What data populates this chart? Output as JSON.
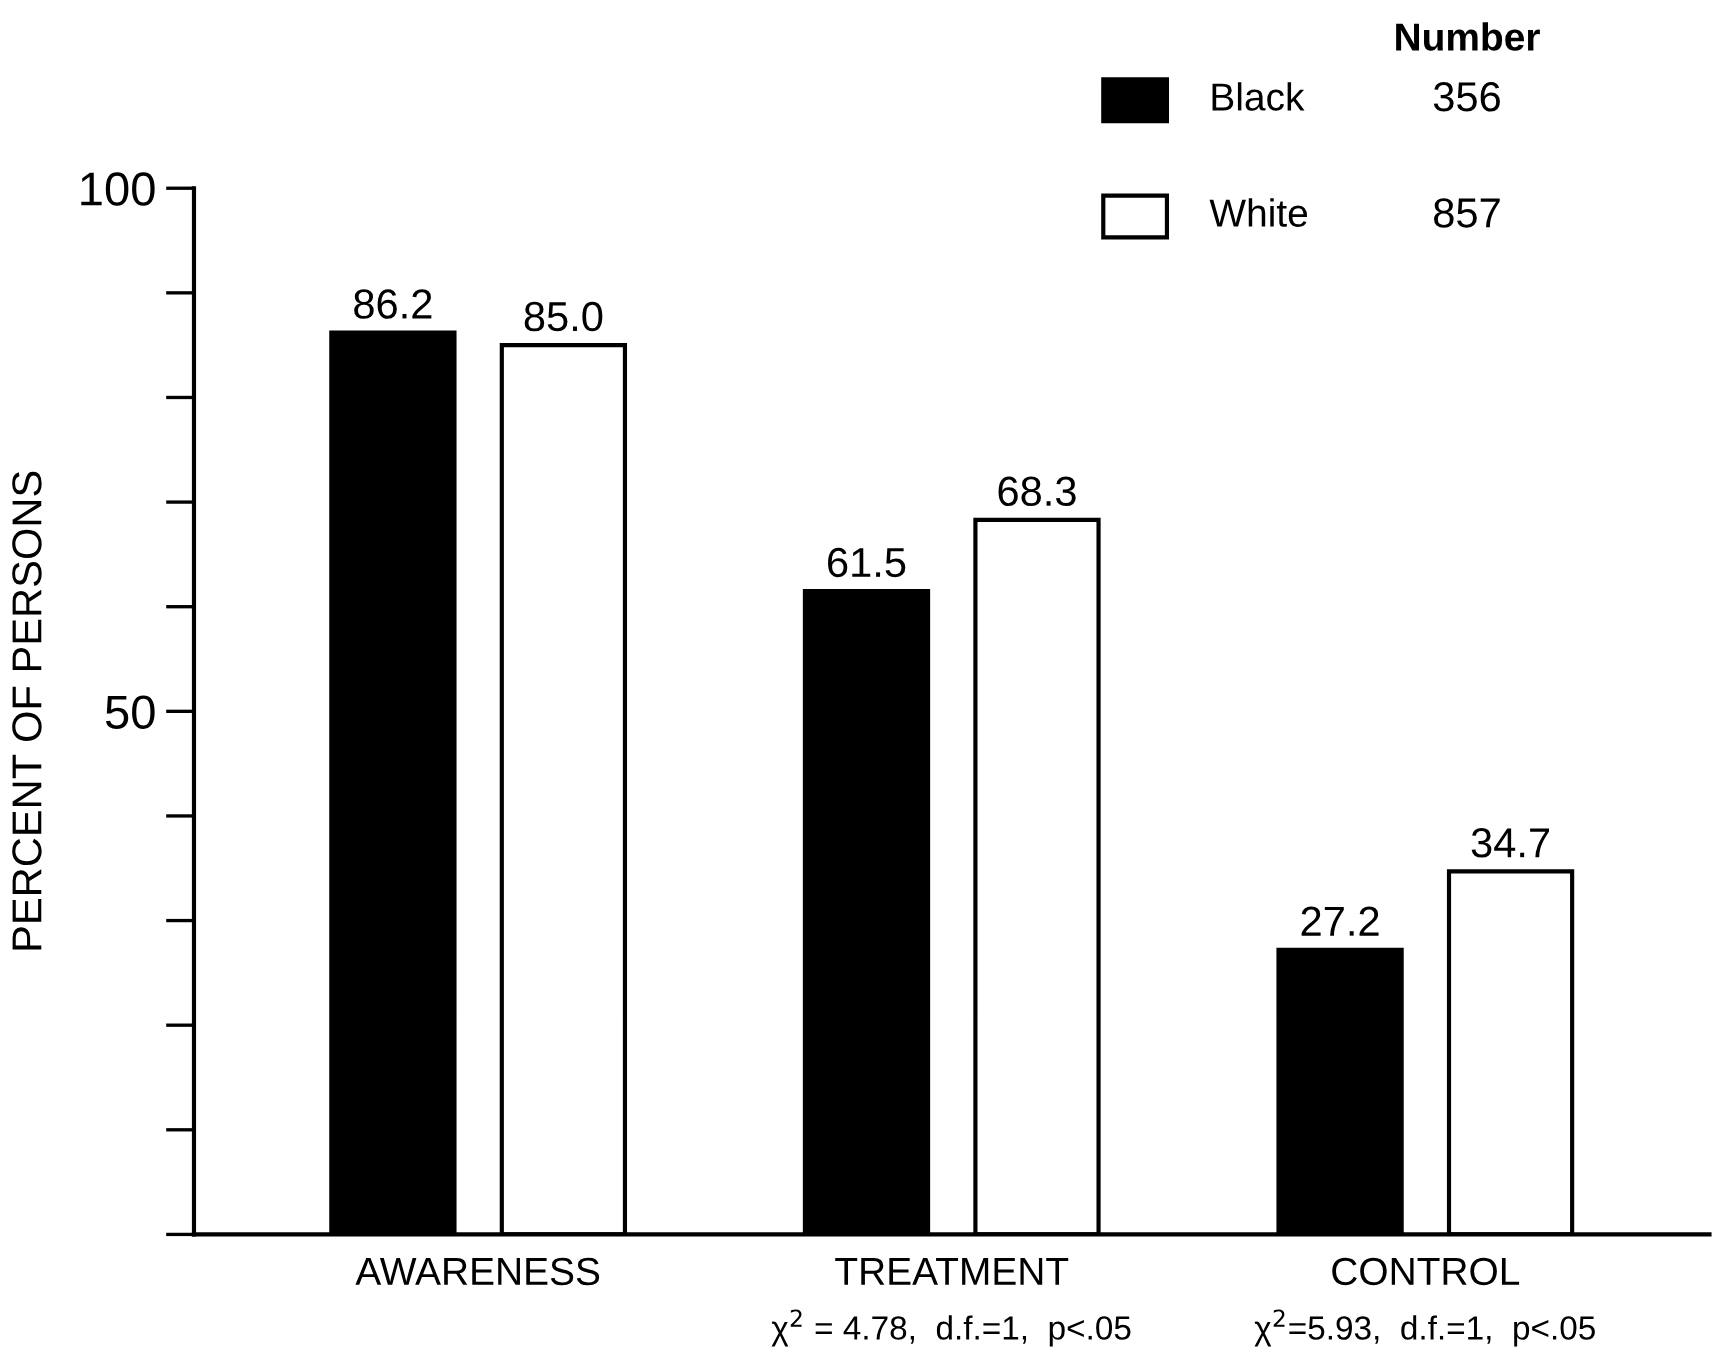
{
  "chart_data": {
    "type": "bar",
    "ylabel": "PERCENT OF PERSONS",
    "categories": [
      "AWARENESS",
      "TREATMENT",
      "CONTROL"
    ],
    "series": [
      {
        "name": "Black",
        "color": "#000000",
        "values": [
          86.2,
          61.5,
          27.2
        ]
      },
      {
        "name": "White",
        "color": "#ffffff",
        "values": [
          85.0,
          68.3,
          34.7
        ],
        "value_labels": [
          "85.0",
          "68.3",
          "34.7"
        ]
      }
    ],
    "ylim": [
      0,
      100
    ],
    "yticks": [
      {
        "value": 0,
        "label": null
      },
      {
        "value": 10,
        "label": null
      },
      {
        "value": 20,
        "label": null
      },
      {
        "value": 30,
        "label": null
      },
      {
        "value": 40,
        "label": null
      },
      50,
      {
        "value": 60,
        "label": null
      },
      {
        "value": 70,
        "label": null
      },
      {
        "value": 80,
        "label": null
      },
      {
        "value": 90,
        "label": null
      },
      100
    ],
    "data_labels": true,
    "legend": "top right",
    "legend_title": "Number",
    "annotations": [
      "356",
      "857",
      "χ$^{2}$ = 4.78,  d.f.=1,  p<.05",
      "χ$^{2}$=5.93,  d.f.=1,  p<.05"
    ],
    "grid": false
  }
}
